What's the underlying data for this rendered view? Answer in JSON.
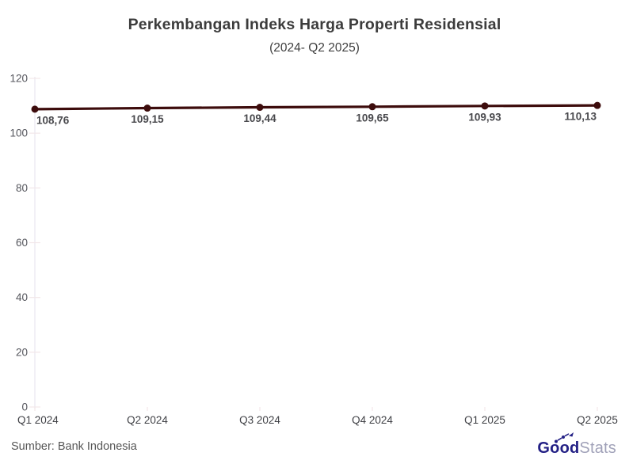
{
  "header": {
    "title": "Perkembangan Indeks Harga Properti Residensial",
    "subtitle": "(2024- Q2 2025)"
  },
  "chart_data": {
    "type": "line",
    "title": "Perkembangan Indeks Harga Properti Residensial",
    "subtitle": "(2024- Q2 2025)",
    "categories": [
      "Q1 2024",
      "Q2 2024",
      "Q3 2024",
      "Q4 2024",
      "Q1 2025",
      "Q2 2025"
    ],
    "values": [
      108.76,
      109.15,
      109.44,
      109.65,
      109.93,
      110.13
    ],
    "value_labels": [
      "108,76",
      "109,15",
      "109,44",
      "109,65",
      "109,93",
      "110,13"
    ],
    "xlabel": "",
    "ylabel": "",
    "ylim": [
      0,
      120
    ],
    "yticks": [
      0,
      20,
      40,
      60,
      80,
      100,
      120
    ],
    "grid": false,
    "legend": "none",
    "colors": {
      "line": "#3d0c0c",
      "marker": "#3d0c0c",
      "data_label": "#48484c",
      "axis_line": "#ece9f2",
      "tick_mark": "#f2e7e9",
      "tick_label": "#54555c"
    }
  },
  "footer": {
    "source": "Sumber: Bank Indonesia",
    "logo": {
      "bold": "Good",
      "light": "Stats"
    }
  }
}
